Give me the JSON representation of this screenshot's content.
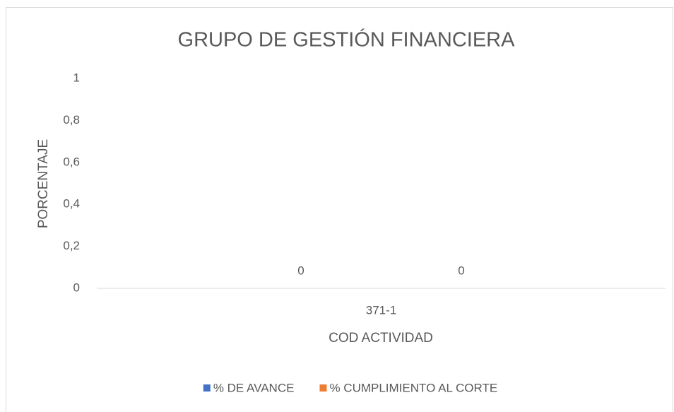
{
  "chart_data": {
    "type": "bar",
    "title": "GRUPO DE GESTIÓN FINANCIERA",
    "ylabel": "PORCENTAJE",
    "xlabel": "COD ACTIVIDAD",
    "categories": [
      "371-1"
    ],
    "series": [
      {
        "name": "% DE AVANCE",
        "color": "#4472c4",
        "values": [
          0
        ]
      },
      {
        "name": "% CUMPLIMIENTO AL CORTE",
        "color": "#ed7d31",
        "values": [
          0
        ]
      }
    ],
    "ylim": [
      0,
      1
    ],
    "yticks": [
      0,
      {
        "value": 0.2,
        "label": "0,2"
      },
      {
        "value": 0.4,
        "label": "0,4"
      },
      {
        "value": 0.6,
        "label": "0,6"
      },
      {
        "value": 0.8,
        "label": "0,8"
      },
      1
    ],
    "grid": false,
    "legend": "bottom"
  }
}
